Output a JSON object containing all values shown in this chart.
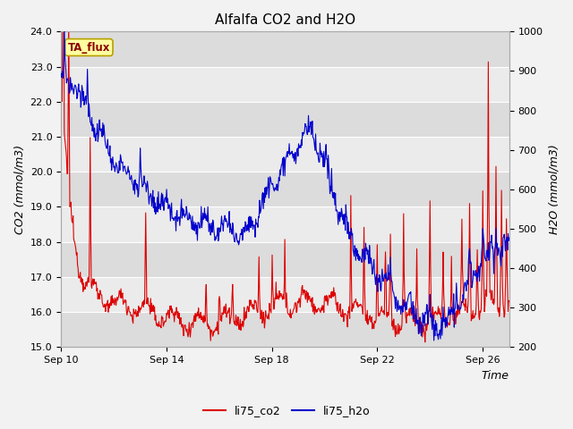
{
  "title": "Alfalfa CO2 and H2O",
  "xlabel": "Time",
  "ylabel_left": "CO2 (mmol/m3)",
  "ylabel_right": "H2O (mmol/m3)",
  "ylim_left": [
    15.0,
    24.0
  ],
  "ylim_right": [
    200,
    1000
  ],
  "yticks_left": [
    15.0,
    16.0,
    17.0,
    18.0,
    19.0,
    20.0,
    21.0,
    22.0,
    23.0,
    24.0
  ],
  "yticks_right": [
    200,
    300,
    400,
    500,
    600,
    700,
    800,
    900,
    1000
  ],
  "xtick_positions": [
    0,
    4,
    8,
    12,
    16
  ],
  "xtick_labels": [
    "Sep 10",
    "Sep 14",
    "Sep 18",
    "Sep 22",
    "Sep 26"
  ],
  "annotation_text": "TA_flux",
  "annotation_color": "#8B0000",
  "annotation_bg": "#FFFFA0",
  "annotation_border": "#B8A000",
  "co2_color": "#DD0000",
  "h2o_color": "#0000CC",
  "legend_co2": "li75_co2",
  "legend_h2o": "li75_h2o",
  "plot_bg_light": "#EBEBEB",
  "plot_bg_dark": "#DCDCDC",
  "grid_color": "#FFFFFF",
  "title_fontsize": 11,
  "axis_label_fontsize": 9,
  "tick_fontsize": 8,
  "legend_fontsize": 9,
  "line_width": 0.8,
  "n_days": 17,
  "n_points": 816
}
